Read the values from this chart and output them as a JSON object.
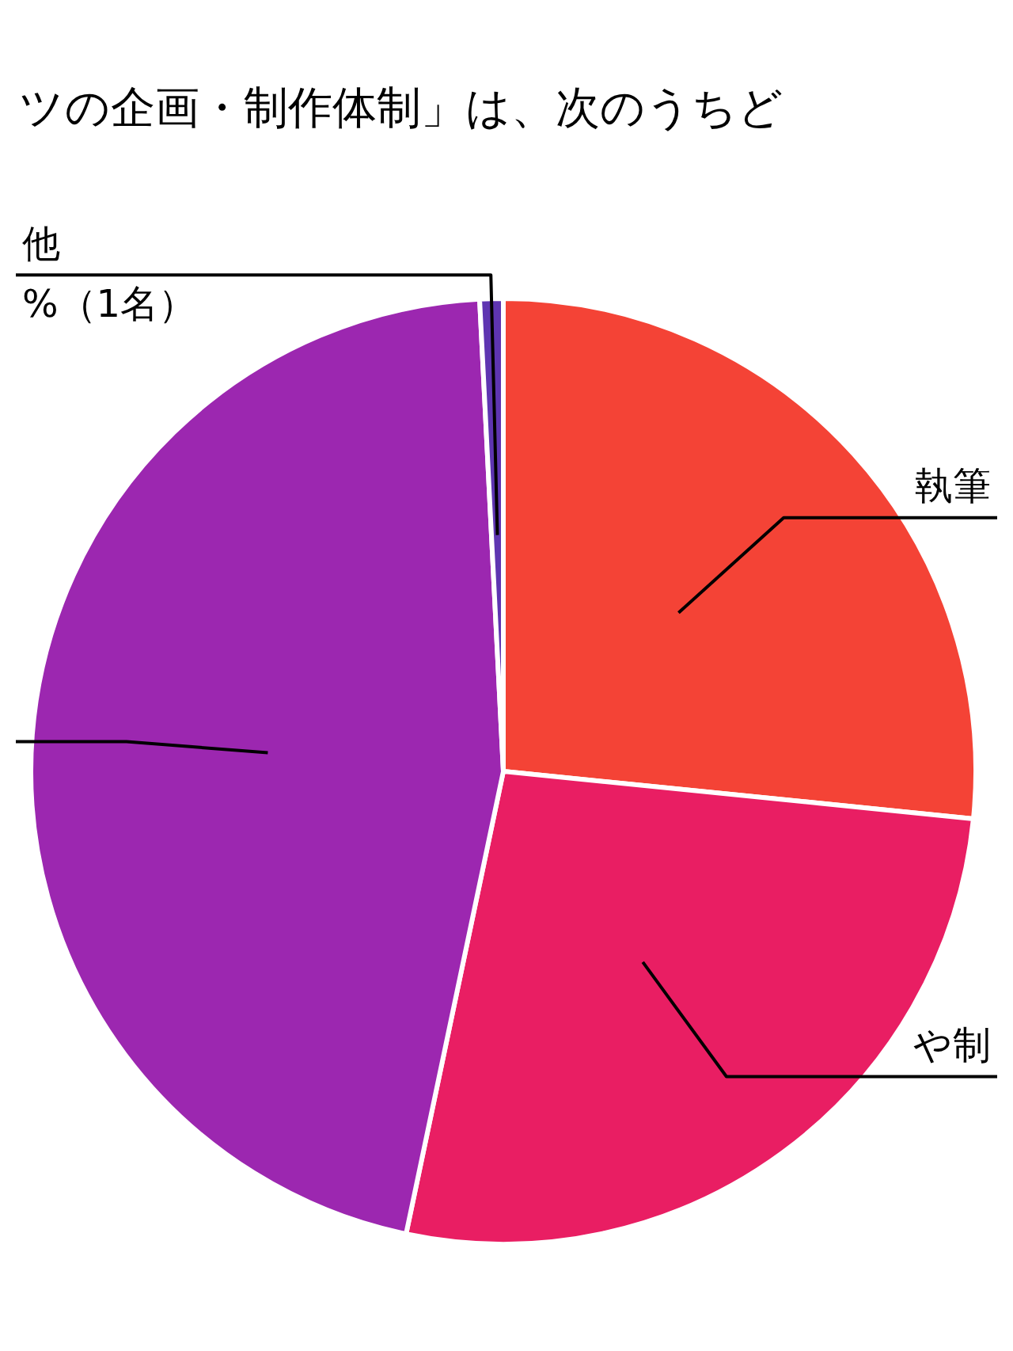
{
  "chart_data": {
    "type": "pie",
    "title": "ツの企画・制作体制」は、次のうちど",
    "categories": [
      "執筆",
      "や制",
      null,
      "他"
    ],
    "values": [
      26.6,
      26.7,
      45.9,
      0.8
    ],
    "colors": [
      "#f44336",
      "#e91e63",
      "#9c27b0",
      "#5e35b1"
    ],
    "annotations": [
      "%（1名）"
    ],
    "legend": false
  }
}
